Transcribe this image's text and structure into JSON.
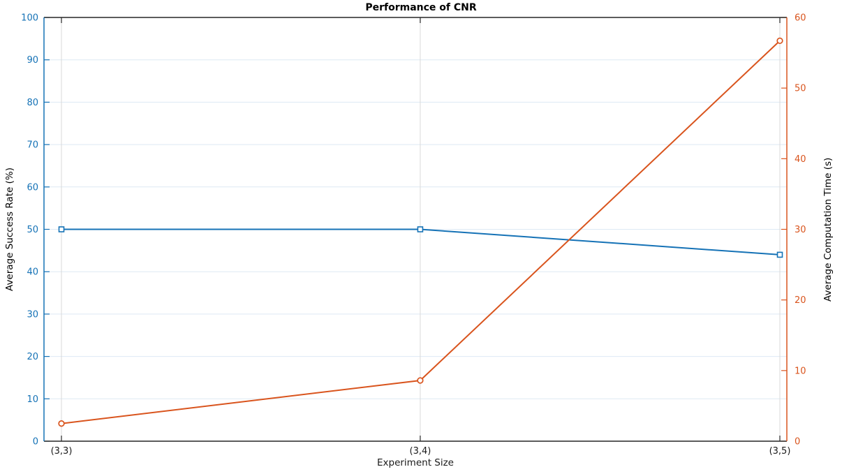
{
  "chart_data": {
    "type": "line",
    "title": "Performance of CNR",
    "xlabel": "Experiment Size",
    "categories": [
      "(3,3)",
      "(3,4)",
      "(3,5)"
    ],
    "series": [
      {
        "name": "Average Success Rate (%)",
        "axis": "left",
        "color": "#1572b6",
        "marker": "square",
        "values": [
          50,
          50,
          44
        ]
      },
      {
        "name": "Average Computation Time (s)",
        "axis": "right",
        "color": "#d9541d",
        "marker": "circle",
        "values": [
          2.5,
          8.6,
          56.7
        ]
      }
    ],
    "left_axis": {
      "label": "Average Success Rate (%)",
      "min": 0,
      "max": 100,
      "step": 10,
      "color": "#1572b6"
    },
    "right_axis": {
      "label": "Average Computation Time (s)",
      "min": 0,
      "max": 60,
      "step": 10,
      "color": "#d9541d"
    },
    "x_axis": {
      "label": "Experiment Size",
      "tick_label_color": "#1a1a1a",
      "spine_color": "#262626"
    },
    "grid": {
      "h_color": "#dde9f4",
      "v_color": "#d9d9d9"
    },
    "legend": "none"
  }
}
